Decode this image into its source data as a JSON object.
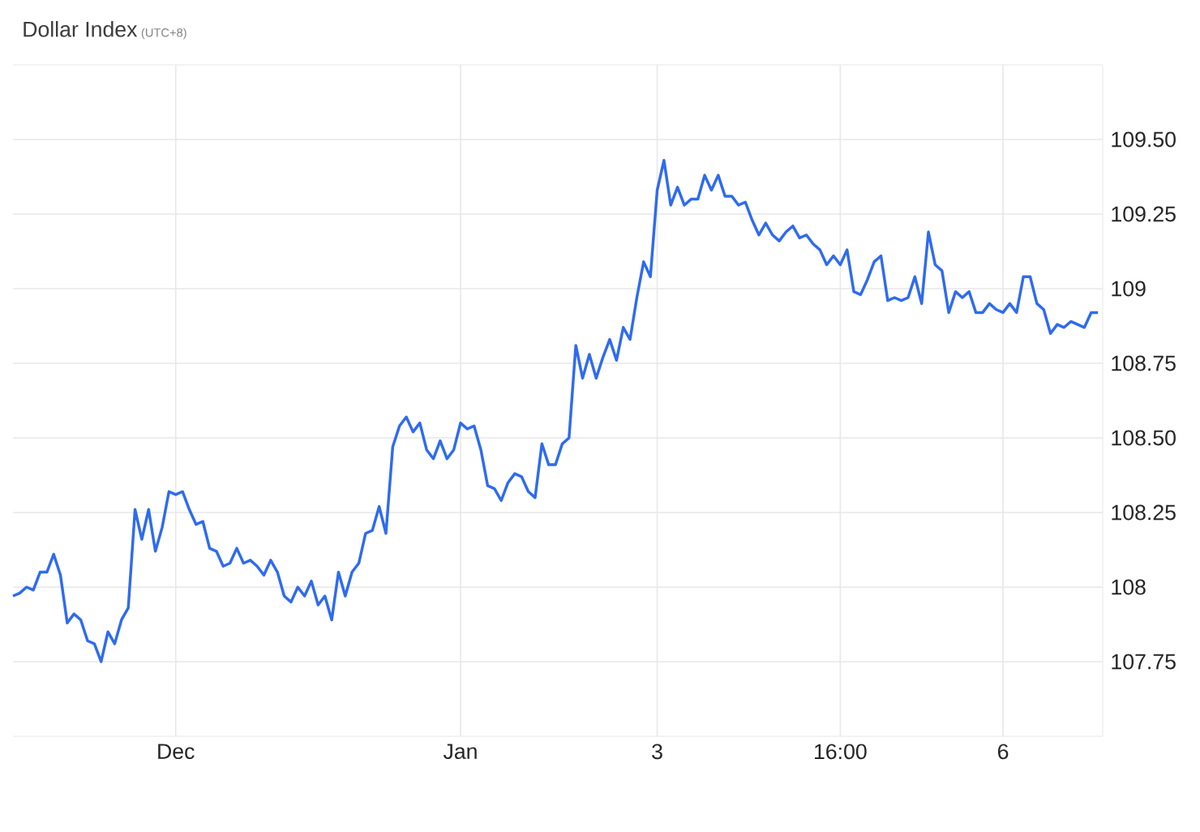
{
  "chart_data": {
    "type": "line",
    "title": "Dollar Index",
    "subtitle": "(UTC+8)",
    "categories": [
      null,
      null,
      null,
      null,
      null,
      null,
      null,
      null,
      null,
      null,
      null,
      null,
      null,
      null,
      null,
      null,
      null,
      null,
      null,
      null,
      null,
      null,
      null,
      null,
      "Dec",
      null,
      null,
      null,
      null,
      null,
      null,
      null,
      null,
      null,
      null,
      null,
      null,
      null,
      null,
      null,
      null,
      null,
      null,
      null,
      null,
      null,
      null,
      null,
      null,
      null,
      null,
      null,
      null,
      null,
      null,
      null,
      null,
      null,
      null,
      null,
      null,
      null,
      null,
      null,
      null,
      null,
      "Jan",
      null,
      null,
      null,
      null,
      null,
      null,
      null,
      null,
      null,
      null,
      null,
      null,
      null,
      null,
      null,
      null,
      null,
      null,
      null,
      null,
      null,
      null,
      null,
      null,
      null,
      null,
      null,
      null,
      "3",
      null,
      null,
      null,
      null,
      null,
      null,
      null,
      null,
      null,
      null,
      null,
      null,
      null,
      null,
      null,
      null,
      null,
      null,
      null,
      null,
      null,
      null,
      null,
      null,
      null,
      null,
      "16:00",
      null,
      null,
      null,
      null,
      null,
      null,
      null,
      null,
      null,
      null,
      null,
      null,
      null,
      null,
      null,
      null,
      null,
      null,
      null,
      null,
      null,
      null,
      null,
      "6",
      null,
      null,
      null,
      null,
      null,
      null,
      null,
      null,
      null,
      null,
      null,
      null,
      null,
      null
    ],
    "ylim": [
      107.5,
      109.75
    ],
    "yticks": [
      {
        "value": 107.75,
        "label": "107.75"
      },
      {
        "value": 108,
        "label": "108"
      },
      {
        "value": 108.25,
        "label": "108.25"
      },
      {
        "value": 108.5,
        "label": "108.50"
      },
      {
        "value": 108.75,
        "label": "108.75"
      },
      {
        "value": 109,
        "label": "109"
      },
      {
        "value": 109.25,
        "label": "109.25"
      },
      {
        "value": 109.5,
        "label": "109.50"
      }
    ],
    "grid": true,
    "marker": "none",
    "line_style": "solid",
    "series": [
      {
        "color": "#2f6bef",
        "values": [
          107.97,
          107.98,
          108.0,
          107.99,
          108.05,
          108.05,
          108.11,
          108.04,
          107.88,
          107.91,
          107.89,
          107.82,
          107.81,
          107.75,
          107.85,
          107.81,
          107.89,
          107.93,
          108.26,
          108.16,
          108.26,
          108.12,
          108.2,
          108.32,
          108.31,
          108.32,
          108.26,
          108.21,
          108.22,
          108.13,
          108.12,
          108.07,
          108.08,
          108.13,
          108.08,
          108.09,
          108.07,
          108.04,
          108.09,
          108.05,
          107.97,
          107.95,
          108.0,
          107.97,
          108.02,
          107.94,
          107.97,
          107.89,
          108.05,
          107.97,
          108.05,
          108.08,
          108.18,
          108.19,
          108.27,
          108.18,
          108.47,
          108.54,
          108.57,
          108.52,
          108.55,
          108.46,
          108.43,
          108.49,
          108.43,
          108.46,
          108.55,
          108.53,
          108.54,
          108.46,
          108.34,
          108.33,
          108.29,
          108.35,
          108.38,
          108.37,
          108.32,
          108.3,
          108.48,
          108.41,
          108.41,
          108.48,
          108.5,
          108.81,
          108.7,
          108.78,
          108.7,
          108.77,
          108.83,
          108.76,
          108.87,
          108.83,
          108.97,
          109.09,
          109.04,
          109.33,
          109.43,
          109.28,
          109.34,
          109.28,
          109.3,
          109.3,
          109.38,
          109.33,
          109.38,
          109.31,
          109.31,
          109.28,
          109.29,
          109.23,
          109.18,
          109.22,
          109.18,
          109.16,
          109.19,
          109.21,
          109.17,
          109.18,
          109.15,
          109.13,
          109.08,
          109.11,
          109.08,
          109.13,
          108.99,
          108.98,
          109.03,
          109.09,
          109.11,
          108.96,
          108.97,
          108.96,
          108.97,
          109.04,
          108.95,
          109.19,
          109.08,
          109.06,
          108.92,
          108.99,
          108.97,
          108.99,
          108.92,
          108.92,
          108.95,
          108.93,
          108.92,
          108.95,
          108.92,
          109.04,
          109.04,
          108.95,
          108.93,
          108.85,
          108.88,
          108.87,
          108.89,
          108.88,
          108.87,
          108.92,
          108.92
        ]
      }
    ]
  }
}
